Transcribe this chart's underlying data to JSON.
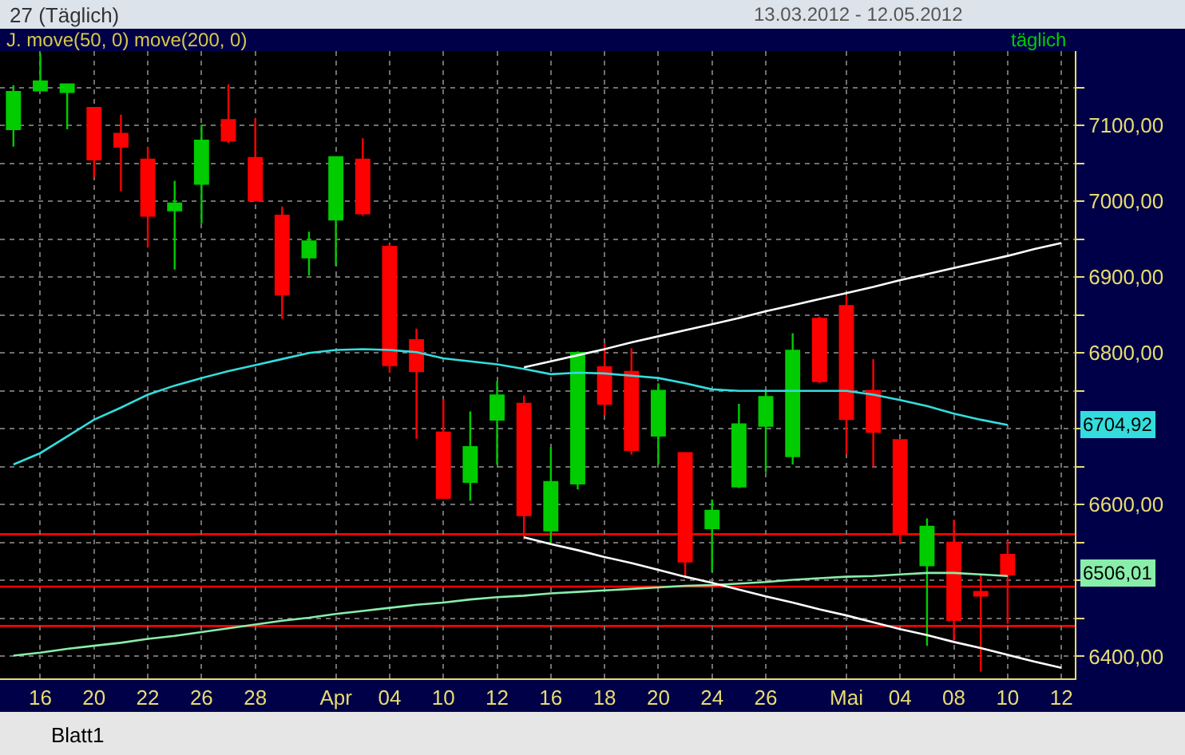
{
  "chart_data": {
    "type": "candlestick",
    "title": "27 (Täglich)",
    "categories": [
      null,
      "16",
      null,
      "20",
      null,
      "22",
      null,
      "26",
      null,
      "28",
      null,
      null,
      "Apr",
      null,
      "04",
      null,
      "10",
      null,
      "12",
      null,
      "16",
      null,
      "18",
      null,
      "20",
      null,
      "24",
      null,
      "26",
      null,
      null,
      "Mai",
      null,
      "04",
      null,
      "08",
      null,
      "10",
      null,
      "12"
    ],
    "ohlc": [
      [
        7095,
        7153,
        7072,
        7144
      ],
      [
        7146,
        7195,
        7145,
        7158
      ],
      [
        7144,
        7155,
        7095,
        7154
      ],
      [
        7123,
        7124,
        7032,
        7055
      ],
      [
        7089,
        7114,
        7013,
        7072
      ],
      [
        7055,
        7072,
        6939,
        6981
      ],
      [
        6988,
        7027,
        6910,
        6997
      ],
      [
        7023,
        7101,
        6971,
        7080
      ],
      [
        7107,
        7154,
        7077,
        7080
      ],
      [
        7057,
        7109,
        7001,
        7001
      ],
      [
        6981,
        6993,
        6845,
        6877
      ],
      [
        6926,
        6960,
        6902,
        6947
      ],
      [
        6976,
        7058,
        6915,
        7058
      ],
      [
        7055,
        7083,
        6981,
        6984
      ],
      [
        6940,
        6944,
        6774,
        6784
      ],
      [
        6817,
        6832,
        6687,
        6776
      ],
      [
        6695,
        6739,
        6609,
        6609
      ],
      [
        6630,
        6723,
        6605,
        6676
      ],
      [
        6712,
        6763,
        6653,
        6744
      ],
      [
        6733,
        6744,
        6554,
        6586
      ],
      [
        6566,
        6676,
        6549,
        6630
      ],
      [
        6628,
        6802,
        6620,
        6800
      ],
      [
        6781,
        6813,
        6718,
        6733
      ],
      [
        6775,
        6806,
        6666,
        6672
      ],
      [
        6691,
        6760,
        6653,
        6750
      ],
      [
        6668,
        6669,
        6506,
        6525
      ],
      [
        6569,
        6607,
        6511,
        6592
      ],
      [
        6624,
        6733,
        6622,
        6706
      ],
      [
        6704,
        6752,
        6643,
        6742
      ],
      [
        6664,
        6826,
        6653,
        6803
      ],
      [
        6845,
        6848,
        6760,
        6763
      ],
      [
        6862,
        6876,
        6666,
        6713
      ],
      [
        6750,
        6792,
        6650,
        6696
      ],
      [
        6685,
        6686,
        6548,
        6563
      ],
      [
        6520,
        6582,
        6414,
        6571
      ],
      [
        6550,
        6580,
        6421,
        6448
      ],
      [
        6485,
        6508,
        6380,
        6480
      ],
      [
        6534,
        6553,
        6443,
        6508
      ],
      null,
      null
    ],
    "colors": [
      "#00cc00",
      "#00cc00",
      "#00cc00",
      "#ff0000",
      "#ff0000",
      "#ff0000",
      "#00cc00",
      "#00cc00",
      "#ff0000",
      "#ff0000",
      "#ff0000",
      "#00cc00",
      "#00cc00",
      "#ff0000",
      "#ff0000",
      "#ff0000",
      "#ff0000",
      "#00cc00",
      "#00cc00",
      "#ff0000",
      "#00cc00",
      "#00cc00",
      "#ff0000",
      "#ff0000",
      "#00cc00",
      "#ff0000",
      "#00cc00",
      "#00cc00",
      "#00cc00",
      "#00cc00",
      "#ff0000",
      "#ff0000",
      "#ff0000",
      "#ff0000",
      "#00cc00",
      "#ff0000",
      "#ff0000",
      "#ff0000",
      null,
      null
    ],
    "series": [
      {
        "type": "line",
        "color": "#33dddd",
        "values": [
          6653,
          6668,
          6690,
          6712,
          6728,
          6745,
          6757,
          6767,
          6776,
          6784,
          6792,
          6800,
          6804,
          6805,
          6804,
          6801,
          6793,
          6789,
          6785,
          6779,
          6772,
          6774,
          6773,
          6770,
          6767,
          6760,
          6752,
          6750,
          6750,
          6750,
          6750,
          6750,
          6745,
          6738,
          6730,
          6720,
          6712,
          6705,
          null,
          null
        ]
      },
      {
        "type": "line",
        "color": "#88eeaa",
        "values": [
          6401,
          6405,
          6410,
          6414,
          6418,
          6423,
          6427,
          6432,
          6437,
          6442,
          6447,
          6451,
          6456,
          6460,
          6464,
          6468,
          6471,
          6475,
          6478,
          6480,
          6483,
          6485,
          6487,
          6489,
          6491,
          6493,
          6494,
          6496,
          6498,
          6501,
          6503,
          6505,
          6506,
          6508,
          6510,
          6510,
          6508,
          6506,
          null,
          null
        ]
      },
      {
        "type": "line",
        "color": "#ffffff",
        "values": [
          null,
          null,
          null,
          null,
          null,
          null,
          null,
          null,
          null,
          null,
          null,
          null,
          null,
          null,
          null,
          null,
          null,
          null,
          null,
          6781,
          6789,
          6797,
          6805,
          6814,
          6822,
          6830,
          6838,
          6846,
          6855,
          6863,
          6871,
          6879,
          6887,
          6896,
          6904,
          6912,
          6920,
          6928,
          6937,
          6945
        ]
      },
      {
        "type": "line",
        "color": "#ffffff",
        "values": [
          null,
          null,
          null,
          null,
          null,
          null,
          null,
          null,
          null,
          null,
          null,
          null,
          null,
          null,
          null,
          null,
          null,
          null,
          null,
          6557,
          6548,
          6540,
          6531,
          6523,
          6514,
          6505,
          6497,
          6488,
          6479,
          6471,
          6462,
          6454,
          6445,
          6436,
          6428,
          6419,
          6411,
          6402,
          6393,
          6385
        ]
      }
    ],
    "ref_lines": [
      {
        "axis": "y",
        "value": 6561,
        "color": "#ff0000"
      },
      {
        "axis": "y",
        "value": 6492,
        "color": "#ff0000"
      },
      {
        "axis": "y",
        "value": 6440,
        "color": "#ff0000"
      }
    ],
    "ylim": [
      6371,
      7198
    ],
    "yticks": [
      {
        "value": 6400,
        "label": "6400,00"
      },
      {
        "value": 6450,
        "label": null
      },
      {
        "value": 6500,
        "label": null
      },
      {
        "value": 6550,
        "label": null
      },
      {
        "value": 6600,
        "label": "6600,00"
      },
      {
        "value": 6650,
        "label": null
      },
      {
        "value": 6700,
        "label": null
      },
      {
        "value": 6750,
        "label": null
      },
      {
        "value": 6800,
        "label": "6800,00"
      },
      {
        "value": 6850,
        "label": null
      },
      {
        "value": 6900,
        "label": "6900,00"
      },
      {
        "value": 6950,
        "label": null
      },
      {
        "value": 7000,
        "label": "7000,00"
      },
      {
        "value": 7050,
        "label": null
      },
      {
        "value": 7100,
        "label": "7100,00"
      },
      {
        "value": 7150,
        "label": null
      }
    ],
    "grid": true,
    "annotations": [
      "13.03.2012 - 12.05.2012",
      "J. move(50, 0) move(200, 0)",
      "täglich",
      "6704,92",
      "6506,01",
      "Blatt1"
    ]
  }
}
